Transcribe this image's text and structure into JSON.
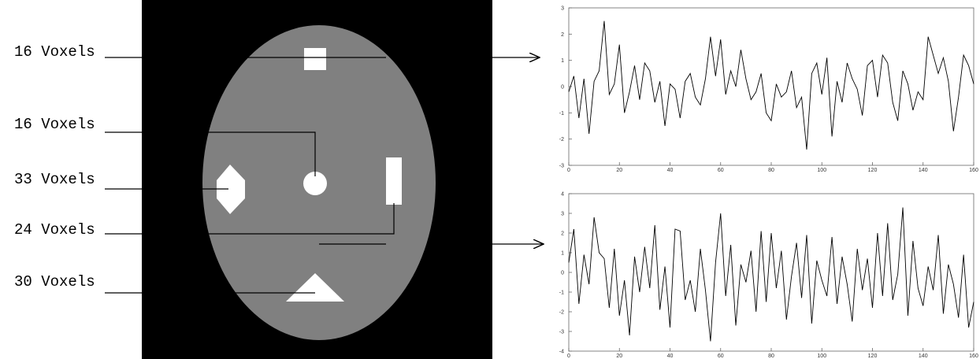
{
  "labels": [
    "16 Voxels",
    "16 Voxels",
    "33 Voxels",
    "24 Voxels",
    "30 Voxels"
  ],
  "chart_data": [
    {
      "type": "line",
      "x": [
        0,
        2,
        4,
        6,
        8,
        10,
        12,
        14,
        16,
        18,
        20,
        22,
        24,
        26,
        28,
        30,
        32,
        34,
        36,
        38,
        40,
        42,
        44,
        46,
        48,
        50,
        52,
        54,
        56,
        58,
        60,
        62,
        64,
        66,
        68,
        70,
        72,
        74,
        76,
        78,
        80,
        82,
        84,
        86,
        88,
        90,
        92,
        94,
        96,
        98,
        100,
        102,
        104,
        106,
        108,
        110,
        112,
        114,
        116,
        118,
        120,
        122,
        124,
        126,
        128,
        130,
        132,
        134,
        136,
        138,
        140,
        142,
        144,
        146,
        148,
        150,
        152,
        154,
        156,
        158,
        160
      ],
      "values": [
        -0.2,
        0.4,
        -1.2,
        0.3,
        -1.8,
        0.2,
        0.6,
        2.5,
        -0.3,
        0.1,
        1.6,
        -1.0,
        -0.2,
        0.8,
        -0.5,
        0.9,
        0.6,
        -0.6,
        0.2,
        -1.5,
        0.1,
        -0.1,
        -1.2,
        0.2,
        0.5,
        -0.4,
        -0.7,
        0.3,
        1.9,
        0.4,
        1.8,
        -0.3,
        0.6,
        0.0,
        1.4,
        0.3,
        -0.5,
        -0.2,
        0.5,
        -1.0,
        -1.3,
        0.1,
        -0.4,
        -0.2,
        0.6,
        -0.8,
        -0.4,
        -2.4,
        0.5,
        0.9,
        -0.3,
        1.1,
        -1.9,
        0.2,
        -0.6,
        0.9,
        0.3,
        -0.1,
        -1.1,
        0.8,
        1.0,
        -0.4,
        1.2,
        0.9,
        -0.6,
        -1.3,
        0.6,
        0.1,
        -0.9,
        -0.2,
        -0.5,
        1.9,
        1.2,
        0.5,
        1.1,
        0.2,
        -1.7,
        -0.4,
        1.2,
        0.8,
        0.1
      ],
      "color": "#000000",
      "xlim": [
        0,
        160
      ],
      "xticks": [
        0,
        20,
        40,
        60,
        80,
        100,
        120,
        140,
        160
      ],
      "ylim": [
        -3,
        3
      ],
      "yticks": [
        -3,
        -2,
        -1,
        0,
        1,
        2,
        3
      ]
    },
    {
      "type": "line",
      "x": [
        0,
        2,
        4,
        6,
        8,
        10,
        12,
        14,
        16,
        18,
        20,
        22,
        24,
        26,
        28,
        30,
        32,
        34,
        36,
        38,
        40,
        42,
        44,
        46,
        48,
        50,
        52,
        54,
        56,
        58,
        60,
        62,
        64,
        66,
        68,
        70,
        72,
        74,
        76,
        78,
        80,
        82,
        84,
        86,
        88,
        90,
        92,
        94,
        96,
        98,
        100,
        102,
        104,
        106,
        108,
        110,
        112,
        114,
        116,
        118,
        120,
        122,
        124,
        126,
        128,
        130,
        132,
        134,
        136,
        138,
        140,
        142,
        144,
        146,
        148,
        150,
        152,
        154,
        156,
        158,
        160
      ],
      "values": [
        0.5,
        2.2,
        -1.6,
        0.9,
        -0.6,
        2.8,
        1.0,
        0.7,
        -1.8,
        1.2,
        -2.2,
        -0.4,
        -3.2,
        0.8,
        -1.0,
        1.3,
        -0.8,
        2.4,
        -1.9,
        0.3,
        -2.8,
        2.2,
        2.1,
        -1.4,
        -0.4,
        -2.0,
        1.2,
        -0.9,
        -3.5,
        0.5,
        3.0,
        -1.2,
        1.4,
        -2.7,
        0.4,
        -0.5,
        1.1,
        -2.0,
        2.1,
        -1.5,
        2.0,
        -0.8,
        1.1,
        -2.4,
        -0.2,
        1.5,
        -1.3,
        1.9,
        -2.6,
        0.6,
        -0.4,
        -1.2,
        1.8,
        -1.6,
        0.8,
        -0.6,
        -2.5,
        1.2,
        -0.9,
        0.7,
        -1.8,
        2.0,
        -1.2,
        2.5,
        -1.4,
        -0.1,
        3.3,
        -2.2,
        1.6,
        -0.8,
        -1.7,
        0.3,
        -0.9,
        1.9,
        -2.1,
        0.4,
        -0.6,
        -2.3,
        0.9,
        -2.8,
        -1.5
      ],
      "color": "#000000",
      "xlim": [
        0,
        160
      ],
      "xticks": [
        0,
        20,
        40,
        60,
        80,
        100,
        120,
        140,
        160
      ],
      "ylim": [
        -4,
        4
      ],
      "yticks": [
        -4,
        -3,
        -2,
        -1,
        0,
        1,
        2,
        3,
        4
      ]
    }
  ]
}
